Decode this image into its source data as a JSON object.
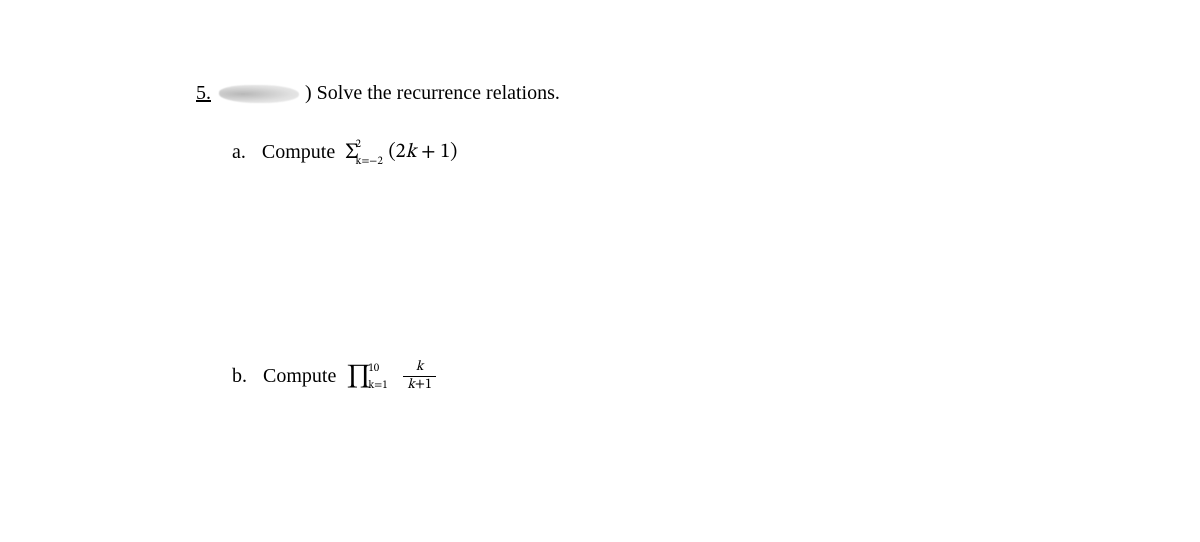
{
  "problem": {
    "number": "5.",
    "title_suffix_paren": ")",
    "title_text": "Solve the recurrence relations."
  },
  "part_a": {
    "label": "a.",
    "word": "Compute",
    "sigma": "Σ",
    "upper": "2",
    "lower": "k=−2",
    "term_open": "(",
    "term_coef": "2",
    "term_var": "k",
    "term_plus": " + ",
    "term_const": "1",
    "term_close": ")"
  },
  "part_b": {
    "label": "b.",
    "word": "Compute",
    "pi": "∏",
    "upper": "10",
    "lower": "k=1",
    "num_var": "k",
    "den_var": "k",
    "den_plus": "+",
    "den_const": "1"
  }
}
